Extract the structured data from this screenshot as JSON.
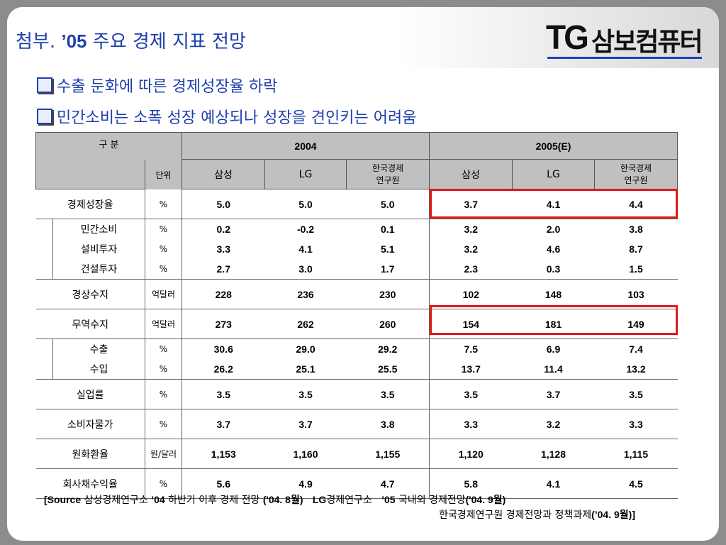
{
  "logo": {
    "latin": "TG",
    "korean": "삼보컴퓨터"
  },
  "title": {
    "prefix": "첨부. ",
    "year": "’05",
    "rest": " 주요 경제 지표 전망"
  },
  "bullets": [
    "수출 둔화에 따른 경제성장율 하락",
    "민간소비는 소폭 성장 예상되나 성장을 견인키는 어려움"
  ],
  "table": {
    "header_category": "구 분",
    "header_unit": "단위",
    "year_2004": "2004",
    "year_2005": "2005(E)",
    "sources": [
      "삼성",
      "LG",
      "한국경제\n연구원",
      "삼성",
      "LG",
      "한국경제\n연구원"
    ],
    "source_labels": {
      "samsung": "삼성",
      "lg": "LG",
      "kdi_line1": "한국경제",
      "kdi_line2": "연구원"
    },
    "rows": [
      {
        "label": "경제성장율",
        "unit": "%",
        "values": [
          "5.0",
          "5.0",
          "5.0",
          "3.7",
          "4.1",
          "4.4"
        ],
        "type": "main"
      },
      {
        "label": "민간소비",
        "unit": "%",
        "values": [
          "0.2",
          "-0.2",
          "0.1",
          "3.2",
          "2.0",
          "3.8"
        ],
        "type": "sub"
      },
      {
        "label": "설비투자",
        "unit": "%",
        "values": [
          "3.3",
          "4.1",
          "5.1",
          "3.2",
          "4.6",
          "8.7"
        ],
        "type": "sub"
      },
      {
        "label": "건설투자",
        "unit": "%",
        "values": [
          "2.7",
          "3.0",
          "1.7",
          "2.3",
          "0.3",
          "1.5"
        ],
        "type": "sub"
      },
      {
        "label": "경상수지",
        "unit": "억달러",
        "values": [
          "228",
          "236",
          "230",
          "102",
          "148",
          "103"
        ],
        "type": "main"
      },
      {
        "label": "무역수지",
        "unit": "억달러",
        "values": [
          "273",
          "262",
          "260",
          "154",
          "181",
          "149"
        ],
        "type": "main"
      },
      {
        "label": "수출",
        "unit": "%",
        "values": [
          "30.6",
          "29.0",
          "29.2",
          "7.5",
          "6.9",
          "7.4"
        ],
        "type": "sub"
      },
      {
        "label": "수입",
        "unit": "%",
        "values": [
          "26.2",
          "25.1",
          "25.5",
          "13.7",
          "11.4",
          "13.2"
        ],
        "type": "sub"
      },
      {
        "label": "실업률",
        "unit": "%",
        "values": [
          "3.5",
          "3.5",
          "3.5",
          "3.5",
          "3.7",
          "3.5"
        ],
        "type": "main"
      },
      {
        "label": "소비자물가",
        "unit": "%",
        "values": [
          "3.7",
          "3.7",
          "3.8",
          "3.3",
          "3.2",
          "3.3"
        ],
        "type": "main"
      },
      {
        "label": "원화환율",
        "unit": "원/달러",
        "values": [
          "1,153",
          "1,160",
          "1,155",
          "1,120",
          "1,128",
          "1,115"
        ],
        "type": "main"
      },
      {
        "label": "회사채수익율",
        "unit": "%",
        "values": [
          "5.6",
          "4.9",
          "4.7",
          "5.8",
          "4.1",
          "4.5"
        ],
        "type": "main"
      }
    ]
  },
  "source_note": {
    "line1_a": "[Source",
    "line1_b": " 삼성경제연구소 ",
    "line1_c": "’04",
    "line1_d": " 하반기 이후 경제 전망 ",
    "line1_e": "('04. 8",
    "line1_f": "월)",
    "line1_g": "LG",
    "line1_h": "경제연구소 ",
    "line1_i": "’05",
    "line1_j": " 국내외 경제전망",
    "line1_k": "('04. 9",
    "line1_l": "월)",
    "line2_a": "한국경제연구원 경제전망과 정책과제",
    "line2_b": "(’04. 9",
    "line2_c": "월)]"
  },
  "colors": {
    "title": "#1f3fae",
    "highlight": "#e01818",
    "header_bg": "#c0c0c0"
  }
}
